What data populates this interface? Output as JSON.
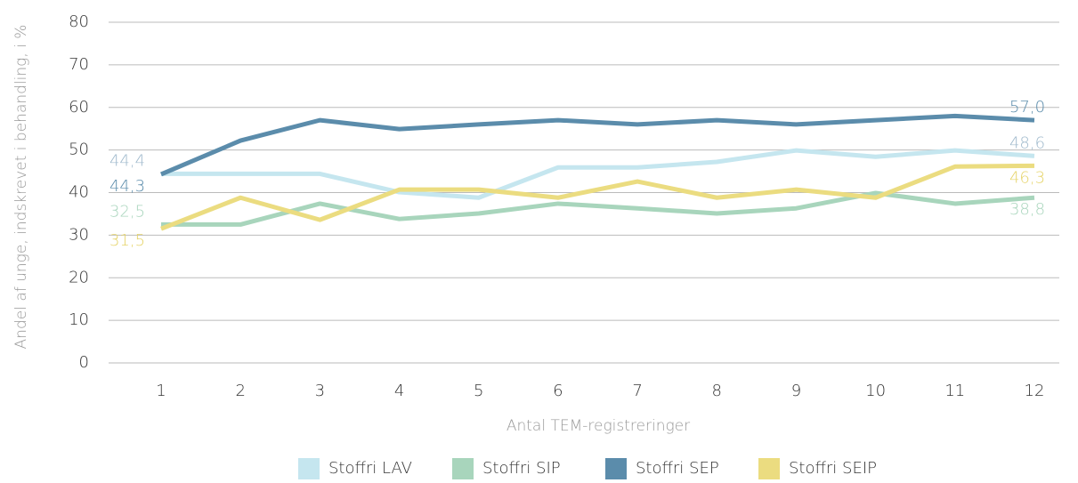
{
  "chart_data": {
    "type": "line",
    "y_label": "Andel af unge, indskrevet i behandling, i %",
    "x_label": "Antal TEM-registreringer",
    "categories": [
      "1",
      "2",
      "3",
      "4",
      "5",
      "6",
      "7",
      "8",
      "9",
      "10",
      "11",
      "12"
    ],
    "series": [
      {
        "name": "Stoffri LAV",
        "color": "#c5e6ef",
        "label_color": "#9fb9cc",
        "values": [
          44.4,
          44.4,
          44.4,
          40.1,
          38.8,
          45.9,
          45.9,
          47.2,
          49.9,
          48.4,
          49.9,
          48.6
        ],
        "value_labels": [
          "44,4",
          null,
          null,
          null,
          null,
          null,
          null,
          null,
          null,
          null,
          null,
          "48,6"
        ]
      },
      {
        "name": "Stoffri SIP",
        "color": "#a8d5bc",
        "label_color": "#a8d5bc",
        "values": [
          32.5,
          32.5,
          37.4,
          33.8,
          35.1,
          37.4,
          36.3,
          35.1,
          36.3,
          39.9,
          37.4,
          38.8
        ],
        "value_labels": [
          "32,5",
          null,
          null,
          null,
          null,
          null,
          null,
          null,
          null,
          null,
          null,
          "38,8"
        ]
      },
      {
        "name": "Stoffri SEP",
        "color": "#5b8cab",
        "label_color": "#5b8cab",
        "values": [
          44.3,
          52.2,
          57.0,
          54.9,
          56.0,
          57.0,
          56.0,
          57.0,
          56.0,
          57.0,
          58.0,
          57.0
        ],
        "value_labels": [
          "44,3",
          null,
          null,
          null,
          null,
          null,
          null,
          null,
          null,
          null,
          null,
          "57,0"
        ]
      },
      {
        "name": "Stoffri SEIP",
        "color": "#ebdc80",
        "label_color": "#e6d46a",
        "values": [
          31.5,
          38.8,
          33.6,
          40.7,
          40.7,
          38.8,
          42.6,
          38.8,
          40.7,
          38.8,
          46.1,
          46.3
        ],
        "value_labels": [
          "31,5",
          null,
          null,
          null,
          null,
          null,
          null,
          null,
          null,
          null,
          null,
          "46,3"
        ]
      }
    ],
    "ylim": [
      0,
      80
    ],
    "yticks": [
      0,
      10,
      20,
      30,
      40,
      50,
      60,
      70,
      80
    ],
    "grid": true
  }
}
